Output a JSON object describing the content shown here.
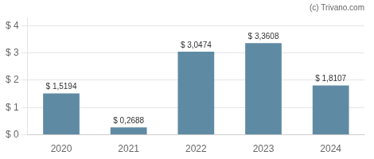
{
  "chart_data": {
    "type": "bar",
    "annotations": [
      "(c) Trivano.com"
    ],
    "categories": [
      "2020",
      "2021",
      "2022",
      "2023",
      "2024"
    ],
    "values": [
      1.5194,
      0.2688,
      3.0474,
      3.3608,
      1.8107
    ],
    "value_labels": [
      "$ 1,5194",
      "$ 0,2688",
      "$ 3,0474",
      "$ 3,3608",
      "$ 1,8107"
    ],
    "data_labels": true,
    "color": "#5f8aa3",
    "ylim": [
      0,
      4.3
    ],
    "yticks": [
      {
        "value": 0,
        "label": "$ 0"
      },
      {
        "value": 1,
        "label": "$ 1"
      },
      {
        "value": 2,
        "label": "$ 2"
      },
      {
        "value": 3,
        "label": "$ 3"
      },
      {
        "value": 4,
        "label": "$ 4"
      }
    ],
    "grid": true
  }
}
